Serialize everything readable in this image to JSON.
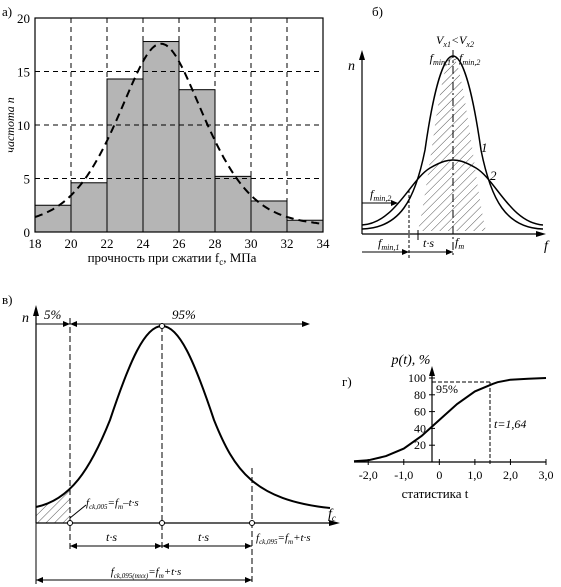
{
  "chart_data": [
    {
      "panel": "а)",
      "type": "bar",
      "xlabel": "прочность при сжатии f",
      "xlabel_sub": "c",
      "xlabel_unit": ", МПа",
      "ylabel": "частота n",
      "x_ticks": [
        "18",
        "20",
        "22",
        "24",
        "26",
        "28",
        "30",
        "32",
        "34"
      ],
      "y_ticks": [
        "0",
        "5",
        "10",
        "15",
        "20"
      ],
      "xlim": [
        18,
        34
      ],
      "ylim": [
        0,
        20
      ],
      "bin_edges": [
        18,
        20,
        22,
        24,
        26,
        28,
        30,
        32,
        34
      ],
      "values": [
        2.5,
        4.6,
        14.3,
        17.8,
        13.3,
        5.2,
        2.9,
        1.1
      ],
      "fit_curve": {
        "style": "dashed",
        "mean": 25,
        "peak": 17.6,
        "sd": 2.6
      },
      "grid": true
    },
    {
      "panel": "б)",
      "type": "line",
      "ylabel": "n",
      "xlabel": "f",
      "series": [
        {
          "name": "1"
        },
        {
          "name": "2"
        }
      ],
      "annotation_top_1": "V",
      "annotation_top_1_sub_a": "x1",
      "annotation_top_1_rel": "<V",
      "annotation_top_1_sub_b": "x2",
      "annotation_top_2": "f",
      "annotation_top_2_sub_a": "min,1",
      "annotation_top_2_rel": ">f",
      "annotation_top_2_sub_b": "min,2",
      "label_fmin2": "f",
      "label_fmin2_sub": "min,2",
      "label_fmin1": "f",
      "label_fmin1_sub": "min,1",
      "label_ts": "t·s",
      "label_fm": "f",
      "label_fm_sub": "m"
    },
    {
      "panel": "в)",
      "type": "line",
      "ylabel": "n",
      "xlabel": "f",
      "xlabel_sub": "c",
      "label_5": "5%",
      "label_95": "95%",
      "label_f005": "f",
      "label_f005_sub": "ck,005",
      "label_f005_rest": "=f",
      "label_f005_sub2": "m",
      "label_f005_tail": "–t·s",
      "label_f095": "f",
      "label_f095_sub": "ck,095",
      "label_f095_rest": "=f",
      "label_f095_sub2": "m",
      "label_f095_tail": "+t·s",
      "label_f095mxx": "f",
      "label_f095mxx_sub": "ck,095(mxx)",
      "label_f095mxx_rest": "=f",
      "label_f095mxx_sub2": "m",
      "label_f095mxx_tail": "+t·s",
      "label_ts_left": "t·s",
      "label_ts_right": "t·s"
    },
    {
      "panel": "г)",
      "type": "line",
      "title": "p(t), %",
      "xlabel": "статистика t",
      "x_ticks": [
        "-2,0",
        "-1,0",
        "0",
        "1,0",
        "2,0",
        "3,0"
      ],
      "y_ticks": [
        "20",
        "40",
        "60",
        "80",
        "100"
      ],
      "xlim": [
        -2.4,
        3.0
      ],
      "ylim": [
        0,
        100
      ],
      "annotation_95": "95%",
      "annotation_t": "t=1,64",
      "x": [
        -2.4,
        -2.0,
        -1.5,
        -1.0,
        -0.5,
        0,
        0.5,
        1.0,
        1.5,
        1.64,
        2.0,
        2.5,
        3.0
      ],
      "values": [
        1,
        2,
        7,
        16,
        31,
        50,
        69,
        84,
        93,
        95,
        98,
        99,
        100
      ]
    }
  ]
}
